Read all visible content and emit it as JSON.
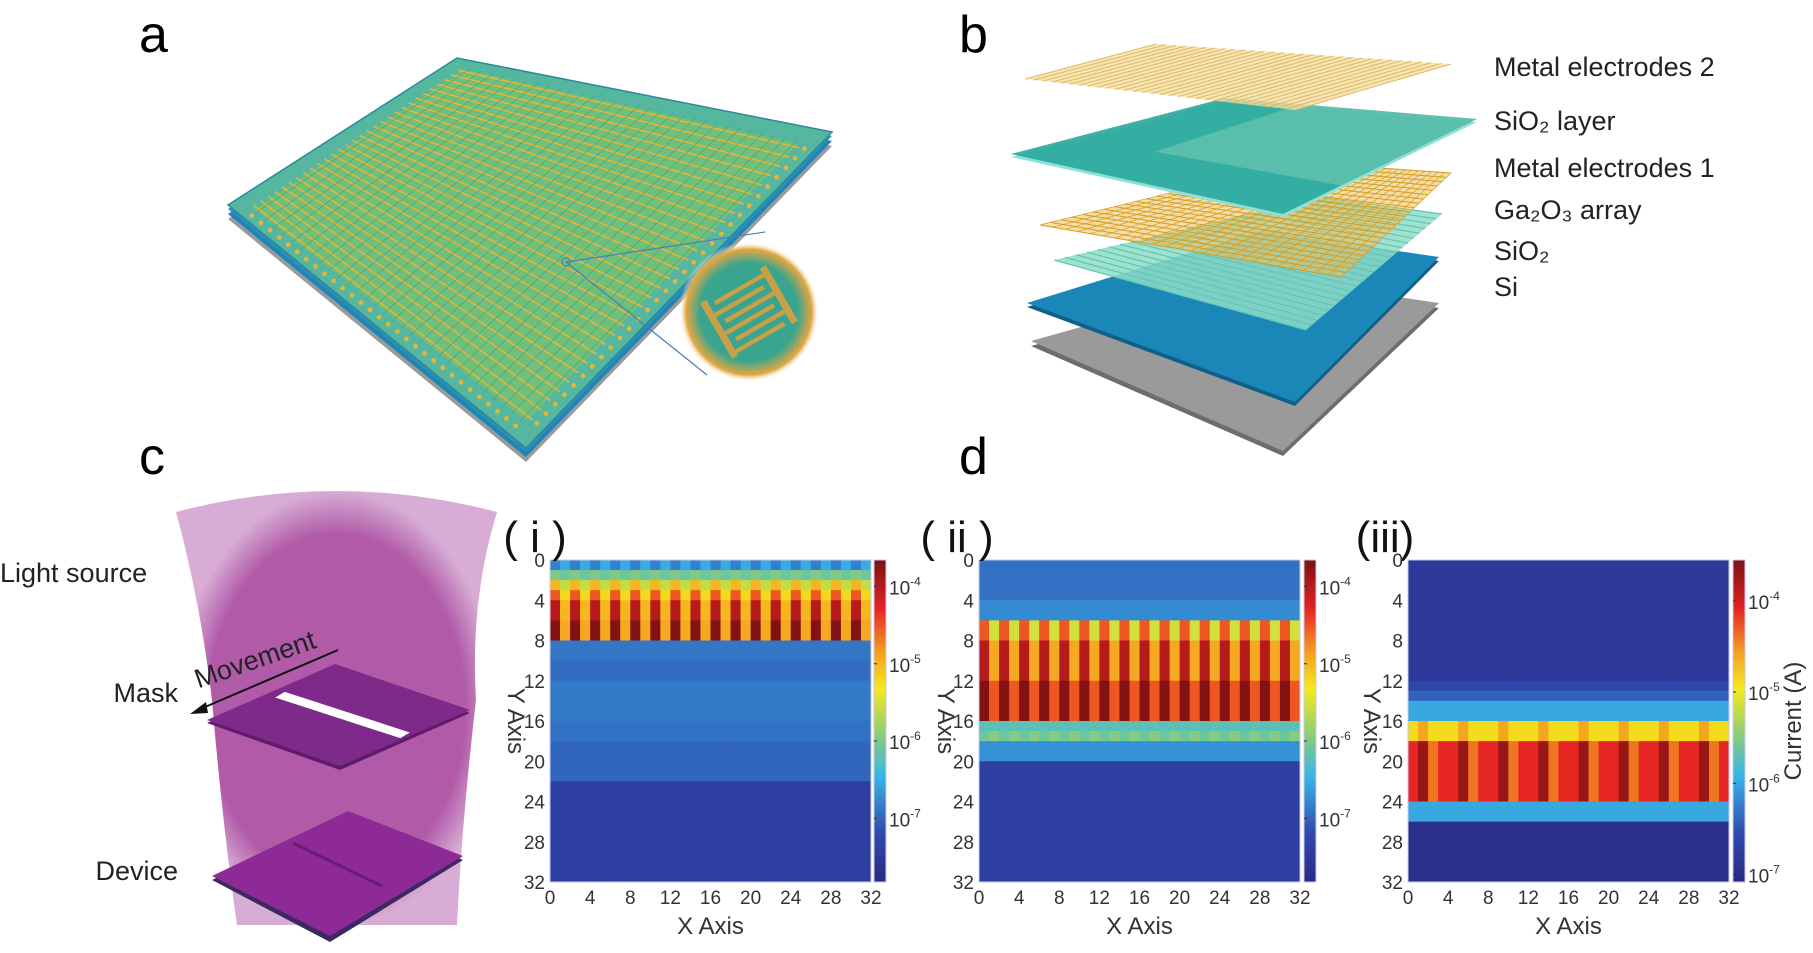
{
  "panel_labels": {
    "a": "a",
    "b": "b",
    "c": "c",
    "d": "d"
  },
  "panel_b": {
    "layers": [
      "Metal electrodes 2",
      "SiO₂ layer",
      "Metal electrodes 1",
      "Ga₂O₃ array",
      "SiO₂",
      "Si"
    ]
  },
  "panel_c": {
    "light_source": "Light source",
    "mask": "Mask",
    "movement": "Movement",
    "device": "Device"
  },
  "colors": {
    "beam": "#b05aa8",
    "mask": "#7e2a8a",
    "device": "#8e2a96",
    "si_layer": "#1b86b8",
    "substrate": "#9a9a9a",
    "sio2_top": "#2aa79c",
    "gold": "#e8b43a"
  },
  "chart_data": [
    {
      "type": "heatmap",
      "title": "( i )",
      "xlabel": "X Axis",
      "ylabel": "Y Axis",
      "xlim": [
        0,
        32
      ],
      "ylim": [
        0,
        32
      ],
      "y_inverted": true,
      "xticks": [
        "0",
        "4",
        "8",
        "12",
        "16",
        "20",
        "24",
        "28",
        "32"
      ],
      "yticks": [
        "0",
        "4",
        "8",
        "12",
        "16",
        "20",
        "24",
        "28",
        "32"
      ],
      "colorbar": {
        "label": "",
        "scale": "log",
        "range": [
          1.5e-08,
          0.00022
        ],
        "ticks": [
          {
            "base": "10",
            "exp": "-4",
            "value": 0.0001
          },
          {
            "base": "10",
            "exp": "-5",
            "value": 1e-05
          },
          {
            "base": "10",
            "exp": "-6",
            "value": 1e-06
          },
          {
            "base": "10",
            "exp": "-7",
            "value": 1e-07
          }
        ]
      },
      "value_unit": "A",
      "bands": [
        {
          "y": [
            0,
            1
          ],
          "column_pattern": [
            1.5e-07,
            3e-07
          ]
        },
        {
          "y": [
            1,
            2
          ],
          "column_pattern": [
            1e-06,
            8e-07
          ]
        },
        {
          "y": [
            2,
            3
          ],
          "column_pattern": [
            1e-05,
            2.5e-06
          ]
        },
        {
          "y": [
            3,
            4
          ],
          "column_pattern": [
            3e-05,
            6e-06
          ]
        },
        {
          "y": [
            4,
            6
          ],
          "column_pattern": [
            0.0001,
            1e-05
          ]
        },
        {
          "y": [
            6,
            8
          ],
          "column_pattern": [
            0.0002,
            1.2e-05
          ]
        },
        {
          "y": [
            8,
            10
          ],
          "column_pattern": [
            1.3e-07
          ]
        },
        {
          "y": [
            10,
            12
          ],
          "column_pattern": [
            1.1e-07
          ]
        },
        {
          "y": [
            12,
            16
          ],
          "column_pattern": [
            1.4e-07
          ]
        },
        {
          "y": [
            16,
            18
          ],
          "column_pattern": [
            1.2e-07
          ]
        },
        {
          "y": [
            18,
            22
          ],
          "column_pattern": [
            1e-07
          ]
        },
        {
          "y": [
            22,
            32
          ],
          "column_pattern": [
            4e-08
          ]
        }
      ]
    },
    {
      "type": "heatmap",
      "title": "( ii )",
      "xlabel": "X Axis",
      "ylabel": "Y Axis",
      "xlim": [
        0,
        32
      ],
      "ylim": [
        0,
        32
      ],
      "y_inverted": true,
      "xticks": [
        "0",
        "4",
        "8",
        "12",
        "16",
        "20",
        "24",
        "28",
        "32"
      ],
      "yticks": [
        "0",
        "4",
        "8",
        "12",
        "16",
        "20",
        "24",
        "28",
        "32"
      ],
      "colorbar": {
        "label": "",
        "scale": "log",
        "range": [
          1.5e-08,
          0.00022
        ],
        "ticks": [
          {
            "base": "10",
            "exp": "-4",
            "value": 0.0001
          },
          {
            "base": "10",
            "exp": "-5",
            "value": 1e-05
          },
          {
            "base": "10",
            "exp": "-6",
            "value": 1e-06
          },
          {
            "base": "10",
            "exp": "-7",
            "value": 1e-07
          }
        ]
      },
      "value_unit": "A",
      "bands": [
        {
          "y": [
            0,
            4
          ],
          "column_pattern": [
            1.2e-07
          ]
        },
        {
          "y": [
            4,
            6
          ],
          "column_pattern": [
            1.8e-07
          ]
        },
        {
          "y": [
            6,
            8
          ],
          "column_pattern": [
            3e-05,
            3e-06
          ]
        },
        {
          "y": [
            8,
            12
          ],
          "column_pattern": [
            0.0001,
            1.2e-05
          ]
        },
        {
          "y": [
            12,
            16
          ],
          "column_pattern": [
            0.0002,
            3e-05
          ]
        },
        {
          "y": [
            16,
            17
          ],
          "column_pattern": [
            6e-07
          ]
        },
        {
          "y": [
            17,
            18
          ],
          "column_pattern": [
            8e-07,
            1.1e-06
          ]
        },
        {
          "y": [
            18,
            20
          ],
          "column_pattern": [
            2e-07
          ]
        },
        {
          "y": [
            20,
            32
          ],
          "column_pattern": [
            4e-08
          ]
        }
      ]
    },
    {
      "type": "heatmap",
      "title": "(iii)",
      "xlabel": "X Axis",
      "ylabel": "Y Axis",
      "xlim": [
        0,
        32
      ],
      "ylim": [
        0,
        32
      ],
      "y_inverted": true,
      "xticks": [
        "0",
        "4",
        "8",
        "12",
        "16",
        "20",
        "24",
        "28",
        "32"
      ],
      "yticks": [
        "0",
        "4",
        "8",
        "12",
        "16",
        "20",
        "24",
        "28",
        "32"
      ],
      "colorbar": {
        "label": "Current (A)",
        "scale": "log",
        "range": [
          8.3e-08,
          0.00028
        ],
        "ticks": [
          {
            "base": "10",
            "exp": "-4",
            "value": 0.0001
          },
          {
            "base": "10",
            "exp": "-5",
            "value": 1e-05
          },
          {
            "base": "10",
            "exp": "-6",
            "value": 1e-06
          },
          {
            "base": "10",
            "exp": "-7",
            "value": 1e-07
          }
        ]
      },
      "value_unit": "A",
      "bands": [
        {
          "y": [
            0,
            12
          ],
          "column_pattern": [
            1.5e-07
          ]
        },
        {
          "y": [
            12,
            13
          ],
          "column_pattern": [
            2.5e-07
          ]
        },
        {
          "y": [
            13,
            14
          ],
          "column_pattern": [
            4e-07
          ]
        },
        {
          "y": [
            14,
            16
          ],
          "column_pattern": [
            1e-06
          ]
        },
        {
          "y": [
            16,
            18
          ],
          "column_pattern": [
            1.3e-05,
            2.5e-05,
            1.3e-05,
            1.3e-05
          ]
        },
        {
          "y": [
            18,
            24
          ],
          "column_pattern": [
            8e-05,
            0.0002,
            4e-05,
            8e-05
          ]
        },
        {
          "y": [
            24,
            26
          ],
          "column_pattern": [
            1e-06
          ]
        },
        {
          "y": [
            26,
            32
          ],
          "column_pattern": [
            1e-07
          ]
        }
      ]
    }
  ]
}
